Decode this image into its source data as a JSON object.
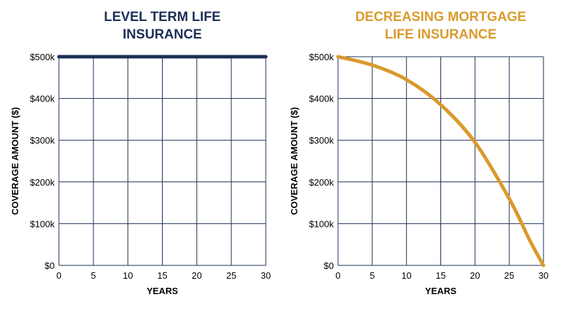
{
  "chart_data": [
    {
      "type": "line",
      "title_lines": [
        "LEVEL TERM LIFE",
        "INSURANCE"
      ],
      "title_color": "#1b2f55",
      "xlabel": "YEARS",
      "ylabel": "COVERAGE AMOUNT ($)",
      "x_ticks": [
        "0",
        "5",
        "10",
        "15",
        "20",
        "25",
        "30"
      ],
      "y_ticks": [
        "$0",
        "$100k",
        "$200k",
        "$300k",
        "$400k",
        "$500k"
      ],
      "xlim": [
        0,
        30
      ],
      "ylim": [
        0,
        500000
      ],
      "grid": true,
      "series": [
        {
          "color": "#1b2f55",
          "x": [
            0,
            5,
            10,
            15,
            20,
            25,
            30
          ],
          "y": [
            500000,
            500000,
            500000,
            500000,
            500000,
            500000,
            500000
          ]
        }
      ]
    },
    {
      "type": "line",
      "title_lines": [
        "DECREASING MORTGAGE",
        "LIFE INSURANCE"
      ],
      "title_color": "#d99a2b",
      "xlabel": "YEARS",
      "ylabel": "COVERAGE AMOUNT ($)",
      "x_ticks": [
        "0",
        "5",
        "10",
        "15",
        "20",
        "25",
        "30"
      ],
      "y_ticks": [
        "$0",
        "$100k",
        "$200k",
        "$300k",
        "$400k",
        "$500k"
      ],
      "xlim": [
        0,
        30
      ],
      "ylim": [
        0,
        500000
      ],
      "grid": true,
      "series": [
        {
          "color": "#d99a2b",
          "x": [
            0,
            5,
            10,
            15,
            20,
            25,
            28,
            30
          ],
          "y": [
            500000,
            480000,
            445000,
            385000,
            295000,
            160000,
            60000,
            0
          ]
        }
      ]
    }
  ]
}
